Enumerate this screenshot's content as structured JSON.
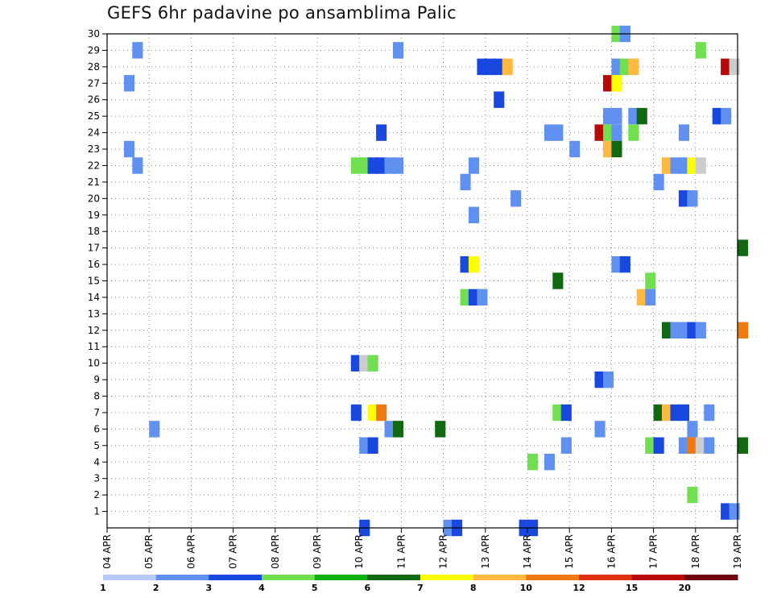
{
  "chart_data": {
    "type": "heatmap",
    "title": "GEFS 6hr padavine po ansamblima Palic",
    "x_tick_labels": [
      "04 APR",
      "05 APR",
      "06 APR",
      "07 APR",
      "08 APR",
      "09 APR",
      "10 APR",
      "11 APR",
      "12 APR",
      "13 APR",
      "14 APR",
      "15 APR",
      "16 APR",
      "17 APR",
      "18 APR",
      "19 APR"
    ],
    "y_tick_labels": [
      "1",
      "2",
      "3",
      "4",
      "5",
      "6",
      "7",
      "8",
      "9",
      "10",
      "11",
      "12",
      "13",
      "14",
      "15",
      "16",
      "17",
      "18",
      "19",
      "20",
      "21",
      "22",
      "23",
      "24",
      "25",
      "26",
      "27",
      "28",
      "29",
      "30"
    ],
    "x_range_days": [
      0,
      15
    ],
    "y_range": [
      0,
      30
    ],
    "grid": "dotted",
    "legend_position": "bottom",
    "legend_labels": [
      "1",
      "2",
      "3",
      "4",
      "5",
      "6",
      "7",
      "8",
      "10",
      "12",
      "15",
      "20"
    ],
    "legend_colors": [
      "#b8c8f8",
      "#6090f0",
      "#1848e0",
      "#70e050",
      "#10b010",
      "#106810",
      "#ffff00",
      "#ffb840",
      "#f07810",
      "#e03010",
      "#b80808",
      "#700010"
    ],
    "colors": {
      "frame": "#000000",
      "grid": "#888888"
    },
    "cells": [
      [
        30,
        12.0,
        3
      ],
      [
        30,
        12.2,
        1
      ],
      [
        29,
        0.6,
        1
      ],
      [
        29,
        6.8,
        1
      ],
      [
        29,
        14.0,
        3
      ],
      [
        28,
        8.8,
        2
      ],
      [
        28,
        9.0,
        2
      ],
      [
        28,
        9.2,
        2
      ],
      [
        28,
        9.4,
        7
      ],
      [
        28,
        12.0,
        1
      ],
      [
        28,
        12.2,
        3
      ],
      [
        28,
        12.4,
        7
      ],
      [
        28,
        14.6,
        10
      ],
      [
        28,
        14.8,
        12
      ],
      [
        27,
        0.4,
        1
      ],
      [
        27,
        11.8,
        10
      ],
      [
        27,
        12.0,
        6
      ],
      [
        26,
        9.2,
        2
      ],
      [
        25,
        11.8,
        1
      ],
      [
        25,
        12.0,
        1
      ],
      [
        25,
        12.4,
        1
      ],
      [
        25,
        12.6,
        5
      ],
      [
        25,
        14.4,
        2
      ],
      [
        25,
        14.6,
        1
      ],
      [
        24,
        6.4,
        2
      ],
      [
        24,
        10.4,
        1
      ],
      [
        24,
        10.6,
        1
      ],
      [
        24,
        11.6,
        10
      ],
      [
        24,
        11.8,
        3
      ],
      [
        24,
        12.0,
        1
      ],
      [
        24,
        12.4,
        3
      ],
      [
        24,
        13.6,
        1
      ],
      [
        23,
        0.4,
        1
      ],
      [
        23,
        11.8,
        7
      ],
      [
        23,
        12.0,
        5
      ],
      [
        23,
        11.0,
        1
      ],
      [
        22,
        0.6,
        1
      ],
      [
        22,
        5.8,
        3
      ],
      [
        22,
        6.0,
        3
      ],
      [
        22,
        6.2,
        2
      ],
      [
        22,
        6.4,
        2
      ],
      [
        22,
        6.6,
        1
      ],
      [
        22,
        6.8,
        1
      ],
      [
        22,
        8.6,
        1
      ],
      [
        22,
        13.2,
        7
      ],
      [
        22,
        13.4,
        1
      ],
      [
        22,
        13.6,
        1
      ],
      [
        22,
        13.8,
        6
      ],
      [
        22,
        14.0,
        20
      ],
      [
        21,
        8.4,
        1
      ],
      [
        21,
        13.0,
        1
      ],
      [
        20,
        9.6,
        1
      ],
      [
        20,
        13.6,
        2
      ],
      [
        20,
        13.8,
        1
      ],
      [
        19,
        8.6,
        1
      ],
      [
        17,
        15.0,
        5
      ],
      [
        16,
        8.4,
        2
      ],
      [
        16,
        8.6,
        6
      ],
      [
        16,
        12.0,
        1
      ],
      [
        16,
        12.2,
        2
      ],
      [
        15,
        10.6,
        5
      ],
      [
        15,
        12.8,
        3
      ],
      [
        14,
        8.4,
        3
      ],
      [
        14,
        8.6,
        2
      ],
      [
        14,
        8.8,
        1
      ],
      [
        14,
        12.6,
        7
      ],
      [
        14,
        12.8,
        1
      ],
      [
        12,
        13.2,
        5
      ],
      [
        12,
        13.4,
        1
      ],
      [
        12,
        13.6,
        1
      ],
      [
        12,
        13.8,
        2
      ],
      [
        12,
        14.0,
        1
      ],
      [
        12,
        15.0,
        8
      ],
      [
        10,
        5.8,
        2
      ],
      [
        10,
        6.0,
        15
      ],
      [
        10,
        6.2,
        3
      ],
      [
        9,
        11.6,
        2
      ],
      [
        9,
        11.8,
        1
      ],
      [
        7,
        5.8,
        2
      ],
      [
        7,
        6.2,
        6
      ],
      [
        7,
        6.4,
        8
      ],
      [
        7,
        10.6,
        3
      ],
      [
        7,
        10.8,
        2
      ],
      [
        7,
        13.0,
        5
      ],
      [
        7,
        13.2,
        7
      ],
      [
        7,
        13.4,
        2
      ],
      [
        7,
        13.6,
        2
      ],
      [
        7,
        14.2,
        1
      ],
      [
        6,
        1.0,
        1
      ],
      [
        6,
        6.6,
        1
      ],
      [
        6,
        6.8,
        5
      ],
      [
        6,
        7.8,
        5
      ],
      [
        6,
        11.6,
        1
      ],
      [
        6,
        13.8,
        1
      ],
      [
        5,
        6.0,
        1
      ],
      [
        5,
        6.2,
        2
      ],
      [
        5,
        10.8,
        1
      ],
      [
        5,
        12.8,
        3
      ],
      [
        5,
        13.0,
        2
      ],
      [
        5,
        13.6,
        1
      ],
      [
        5,
        13.8,
        8
      ],
      [
        5,
        14.0,
        12
      ],
      [
        5,
        14.2,
        1
      ],
      [
        5,
        15.0,
        5
      ],
      [
        4,
        10.0,
        3
      ],
      [
        4,
        10.4,
        1
      ],
      [
        2,
        13.8,
        3
      ],
      [
        1,
        14.6,
        2
      ],
      [
        1,
        14.8,
        1
      ],
      [
        0,
        6.0,
        2
      ],
      [
        0,
        8.0,
        1
      ],
      [
        0,
        8.2,
        2
      ],
      [
        0,
        9.8,
        2
      ],
      [
        0,
        10.0,
        2
      ]
    ]
  }
}
